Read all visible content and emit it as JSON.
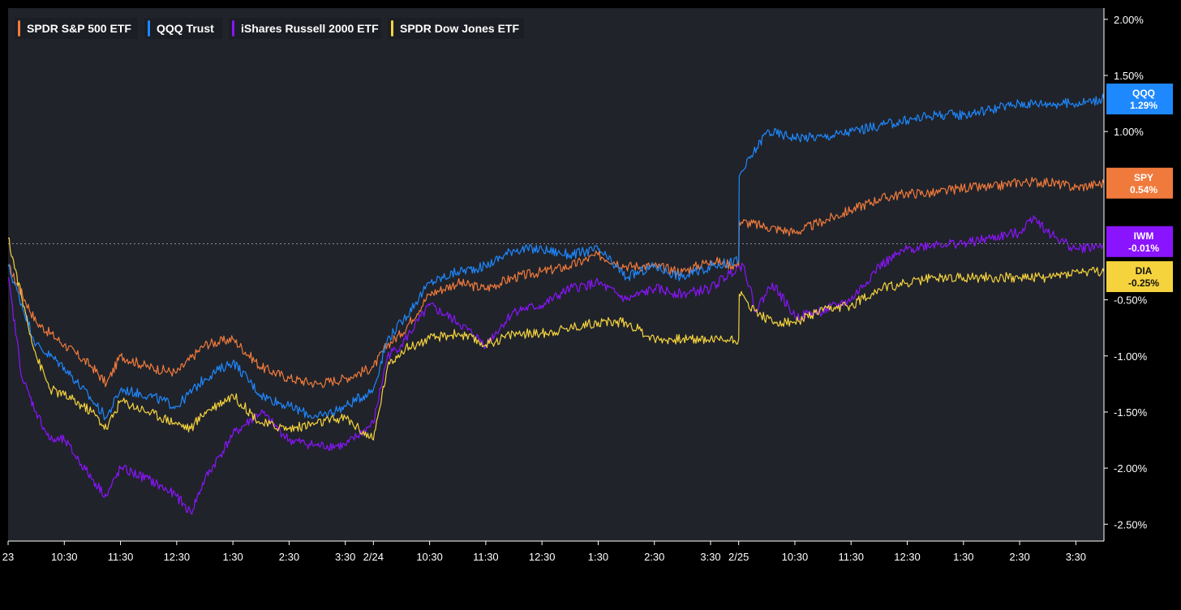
{
  "chart_data": {
    "type": "line",
    "title": "",
    "xlabel": "",
    "ylabel": "",
    "ylim": [
      -2.65,
      2.1
    ],
    "y_ticks": [
      2.0,
      1.5,
      1.0,
      -0.5,
      -1.0,
      -1.5,
      -2.0,
      -2.5
    ],
    "y_tick_labels": [
      "2.00%",
      "1.50%",
      "1.00%",
      "-0.50%",
      "-1.00%",
      "-1.50%",
      "-2.00%",
      "-2.50%"
    ],
    "x_range": [
      0,
      19.5
    ],
    "x_ticks": [
      {
        "x": 0.0,
        "label": "23"
      },
      {
        "x": 1.0,
        "label": "10:30"
      },
      {
        "x": 2.0,
        "label": "11:30"
      },
      {
        "x": 3.0,
        "label": "12:30"
      },
      {
        "x": 4.0,
        "label": "1:30"
      },
      {
        "x": 5.0,
        "label": "2:30"
      },
      {
        "x": 6.0,
        "label": "3:30"
      },
      {
        "x": 6.5,
        "label": "2/24"
      },
      {
        "x": 7.5,
        "label": "10:30"
      },
      {
        "x": 8.5,
        "label": "11:30"
      },
      {
        "x": 9.5,
        "label": "12:30"
      },
      {
        "x": 10.5,
        "label": "1:30"
      },
      {
        "x": 11.5,
        "label": "2:30"
      },
      {
        "x": 12.5,
        "label": "3:30"
      },
      {
        "x": 13.0,
        "label": "2/25"
      },
      {
        "x": 14.0,
        "label": "10:30"
      },
      {
        "x": 15.0,
        "label": "11:30"
      },
      {
        "x": 16.0,
        "label": "12:30"
      },
      {
        "x": 17.0,
        "label": "1:30"
      },
      {
        "x": 18.0,
        "label": "2:30"
      },
      {
        "x": 19.0,
        "label": "3:30"
      }
    ],
    "zero_line": 0.0,
    "series": [
      {
        "name": "SPDR S&P 500 ETF",
        "ticker": "SPY",
        "color": "#F07A3C",
        "last_label": "0.54%",
        "x": [
          0.0,
          0.5,
          1.0,
          1.5,
          1.75,
          2.0,
          2.5,
          3.0,
          3.5,
          4.0,
          4.5,
          5.0,
          5.5,
          6.0,
          6.5,
          6.75,
          7.0,
          7.5,
          8.0,
          8.5,
          9.0,
          9.5,
          10.0,
          10.5,
          11.0,
          11.5,
          12.0,
          12.5,
          13.0,
          13.01,
          13.5,
          14.0,
          14.5,
          15.0,
          15.5,
          16.0,
          16.5,
          17.0,
          17.5,
          18.0,
          18.5,
          19.0,
          19.5
        ],
        "values": [
          -0.2,
          -0.7,
          -0.9,
          -1.1,
          -1.25,
          -1.0,
          -1.1,
          -1.15,
          -0.9,
          -0.85,
          -1.1,
          -1.2,
          -1.25,
          -1.2,
          -1.1,
          -0.9,
          -0.8,
          -0.45,
          -0.35,
          -0.4,
          -0.3,
          -0.25,
          -0.2,
          -0.1,
          -0.2,
          -0.2,
          -0.25,
          -0.15,
          -0.2,
          0.2,
          0.15,
          0.1,
          0.2,
          0.3,
          0.4,
          0.45,
          0.45,
          0.5,
          0.5,
          0.55,
          0.55,
          0.5,
          0.54
        ]
      },
      {
        "name": "QQQ Trust",
        "ticker": "QQQ",
        "color": "#1E88FF",
        "last_label": "1.29%",
        "x": [
          0.0,
          0.5,
          1.0,
          1.5,
          1.75,
          2.0,
          2.5,
          3.0,
          3.5,
          4.0,
          4.5,
          5.0,
          5.5,
          6.0,
          6.5,
          6.75,
          7.0,
          7.5,
          8.0,
          8.5,
          9.0,
          9.5,
          10.0,
          10.5,
          11.0,
          11.5,
          12.0,
          12.5,
          13.0,
          13.01,
          13.5,
          14.0,
          14.5,
          15.0,
          15.5,
          16.0,
          16.5,
          17.0,
          17.5,
          18.0,
          18.5,
          19.0,
          19.5
        ],
        "values": [
          -0.2,
          -0.9,
          -1.1,
          -1.4,
          -1.55,
          -1.3,
          -1.35,
          -1.45,
          -1.2,
          -1.05,
          -1.35,
          -1.45,
          -1.55,
          -1.45,
          -1.3,
          -0.85,
          -0.7,
          -0.35,
          -0.25,
          -0.2,
          -0.05,
          -0.05,
          -0.1,
          -0.05,
          -0.3,
          -0.2,
          -0.3,
          -0.2,
          -0.15,
          0.6,
          1.0,
          0.95,
          0.95,
          1.0,
          1.05,
          1.1,
          1.15,
          1.15,
          1.2,
          1.25,
          1.25,
          1.25,
          1.29
        ]
      },
      {
        "name": "iShares Russell 2000 ETF",
        "ticker": "IWM",
        "color": "#8A14FF",
        "last_label": "-0.01%",
        "x": [
          0.0,
          0.25,
          0.5,
          0.75,
          1.0,
          1.5,
          1.75,
          2.0,
          2.5,
          3.0,
          3.25,
          3.5,
          4.0,
          4.5,
          5.0,
          5.5,
          6.0,
          6.5,
          6.75,
          7.0,
          7.5,
          8.0,
          8.5,
          9.0,
          9.5,
          10.0,
          10.5,
          11.0,
          11.5,
          12.0,
          12.5,
          13.0,
          13.1,
          13.3,
          13.6,
          14.0,
          14.5,
          15.0,
          15.5,
          16.0,
          16.5,
          17.0,
          17.5,
          18.0,
          18.25,
          18.5,
          19.0,
          19.5
        ],
        "values": [
          -0.3,
          -1.2,
          -1.5,
          -1.75,
          -1.75,
          -2.1,
          -2.25,
          -2.0,
          -2.1,
          -2.25,
          -2.4,
          -2.1,
          -1.7,
          -1.5,
          -1.75,
          -1.8,
          -1.8,
          -1.6,
          -1.0,
          -0.9,
          -0.55,
          -0.7,
          -0.9,
          -0.6,
          -0.55,
          -0.4,
          -0.35,
          -0.5,
          -0.4,
          -0.45,
          -0.4,
          -0.2,
          -0.2,
          -0.6,
          -0.35,
          -0.65,
          -0.6,
          -0.5,
          -0.2,
          -0.05,
          0.0,
          0.0,
          0.05,
          0.1,
          0.25,
          0.1,
          -0.05,
          -0.01
        ]
      },
      {
        "name": "SPDR Dow Jones ETF",
        "ticker": "DIA",
        "color": "#F5D33D",
        "last_label": "-0.25%",
        "x": [
          0.0,
          0.25,
          0.5,
          0.75,
          1.0,
          1.5,
          1.75,
          2.0,
          2.5,
          3.0,
          3.25,
          3.5,
          4.0,
          4.5,
          5.0,
          5.5,
          6.0,
          6.5,
          6.75,
          7.0,
          7.5,
          8.0,
          8.5,
          9.0,
          9.5,
          10.0,
          10.5,
          11.0,
          11.5,
          12.0,
          12.5,
          13.0,
          13.01,
          13.3,
          13.6,
          14.0,
          14.5,
          15.0,
          15.5,
          16.0,
          16.5,
          17.0,
          17.5,
          18.0,
          18.5,
          19.0,
          19.5
        ],
        "values": [
          0.05,
          -0.5,
          -1.0,
          -1.3,
          -1.35,
          -1.5,
          -1.65,
          -1.4,
          -1.5,
          -1.6,
          -1.65,
          -1.5,
          -1.35,
          -1.6,
          -1.65,
          -1.6,
          -1.55,
          -1.75,
          -1.1,
          -0.95,
          -0.85,
          -0.8,
          -0.9,
          -0.8,
          -0.8,
          -0.75,
          -0.7,
          -0.7,
          -0.85,
          -0.85,
          -0.85,
          -0.85,
          -0.45,
          -0.6,
          -0.7,
          -0.7,
          -0.6,
          -0.55,
          -0.4,
          -0.35,
          -0.3,
          -0.3,
          -0.3,
          -0.3,
          -0.3,
          -0.25,
          -0.25
        ]
      }
    ]
  }
}
